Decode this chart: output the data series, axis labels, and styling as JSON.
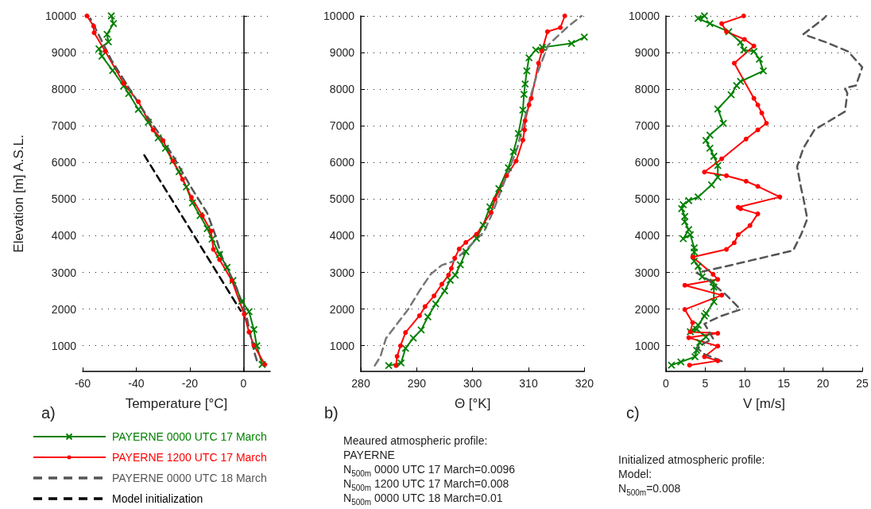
{
  "chart_data": [
    {
      "type": "line",
      "xlabel": "Temperature [°C]",
      "ylabel": "Elevation [m] A.S.L.",
      "xlim": [
        -60,
        10
      ],
      "xticks": [
        -60,
        -40,
        -20,
        0
      ],
      "ylim": [
        300,
        10000
      ],
      "yticks": [
        1000,
        2000,
        3000,
        4000,
        5000,
        6000,
        7000,
        8000,
        9000,
        10000
      ],
      "grid": "y",
      "legend": "bottom",
      "annotations": [
        "a)"
      ],
      "series": [
        {
          "name": "PAYERNE 0000 UTC 17 March",
          "color": "#008000",
          "marker": "cross",
          "x": [
            7,
            5,
            3.9,
            2.1,
            -0.6,
            -3.9,
            -6.1,
            -8.9,
            -11.7,
            -13.5,
            -16.2,
            -19.0,
            -21.3,
            -24.0,
            -26.3,
            -29.1,
            -31.8,
            -35.5,
            -39.2,
            -42.8,
            -44.7,
            -48.8,
            -52.8,
            -53.9,
            -50.4,
            -50.9,
            -48.5,
            -49.3
          ],
          "values": [
            490,
            1000,
            1440,
            1930,
            2220,
            2780,
            3140,
            3490,
            3910,
            4200,
            4550,
            4900,
            5330,
            5750,
            6040,
            6390,
            6670,
            7100,
            7450,
            7880,
            8090,
            8510,
            8900,
            9100,
            9290,
            9500,
            9790,
            10000
          ]
        },
        {
          "name": "PAYERNE 1200 UTC 17 March",
          "color": "#ff0000",
          "marker": "circle",
          "x": [
            8,
            3.9,
            2.1,
            0.3,
            -4.3,
            -8.9,
            -11.2,
            -12.1,
            -15.3,
            -19.4,
            -22.7,
            -26.3,
            -30.0,
            -33.7,
            -39.2,
            -44.7,
            -51.6,
            -55.7,
            -55.9,
            -58.4
          ],
          "values": [
            490,
            1010,
            1370,
            1860,
            2780,
            3350,
            3630,
            4130,
            4550,
            5050,
            5540,
            6040,
            6600,
            6890,
            7660,
            8160,
            9040,
            9540,
            9720,
            10000
          ]
        },
        {
          "name": "PAYERNE 0000 UTC 18 March",
          "color": "#555555",
          "marker": "none",
          "line_style": "dashed",
          "x": [
            5,
            3.9,
            1.2,
            -2.5,
            -8.0,
            -10.7,
            -13.5,
            -19.0,
            -26.3,
            -31.8,
            -38.3,
            -43.8,
            -49.3,
            -57.1
          ],
          "values": [
            600,
            870,
            1790,
            2570,
            3420,
            4060,
            4620,
            5260,
            6180,
            6820,
            7520,
            8160,
            8800,
            9930
          ]
        },
        {
          "name": "Model initialization",
          "color": "#000000",
          "marker": "none",
          "line_style": "dashed",
          "x": [
            -37,
            -1
          ],
          "values": [
            6200,
            1950
          ]
        }
      ]
    },
    {
      "type": "line",
      "xlabel": "Θ [°K]",
      "xlim": [
        280,
        320
      ],
      "xticks": [
        280,
        290,
        300,
        310,
        320
      ],
      "ylim": [
        300,
        10000
      ],
      "yticks": [
        1000,
        2000,
        3000,
        4000,
        5000,
        6000,
        7000,
        8000,
        9000,
        10000
      ],
      "grid": "y",
      "annotations": [
        "b)",
        "Meaured atmospheric profile:",
        "PAYERNE",
        "N$_{500m}$ 0000 UTC 17 March=0.0096",
        "N$_{500m}$ 1200 UTC 17 March=0.008",
        "N$_{500m}$ 0000 UTC 18 March=0.01"
      ],
      "series": [
        {
          "color": "#008000",
          "marker": "cross",
          "x": [
            285.0,
            287.2,
            288.0,
            289.4,
            290.8,
            292.0,
            293.4,
            295.0,
            296.0,
            296.9,
            297.8,
            298.8,
            300.7,
            301.9,
            303.1,
            304.7,
            306.4,
            307.3,
            308.2,
            309.0,
            309.2,
            309.4,
            309.7,
            310.1,
            311.3,
            312.5,
            317.7,
            320
          ],
          "values": [
            460,
            530,
            930,
            1210,
            1430,
            1790,
            2140,
            2500,
            2790,
            2930,
            3210,
            3570,
            3930,
            4290,
            4790,
            5290,
            5860,
            6290,
            6790,
            7430,
            7860,
            8140,
            8500,
            8860,
            9070,
            9140,
            9250,
            9420
          ]
        },
        {
          "color": "#ff0000",
          "marker": "circle",
          "x": [
            286.3,
            286.5,
            287.1,
            288.0,
            290.5,
            291.5,
            293.1,
            294.5,
            295.7,
            296.2,
            296.8,
            297.6,
            298.8,
            300.7,
            303.3,
            304.0,
            306.1,
            307.8,
            309.0,
            309.3,
            309.4,
            310.1,
            310.5,
            311.8,
            312.4,
            313.4,
            315.7,
            316.5
          ],
          "values": [
            460,
            710,
            1000,
            1360,
            1820,
            2070,
            2360,
            2680,
            2930,
            3110,
            3390,
            3640,
            3820,
            4040,
            4640,
            5000,
            5640,
            6040,
            6610,
            6890,
            7140,
            7570,
            7750,
            8710,
            9040,
            9570,
            9680,
            10000
          ]
        },
        {
          "color": "#777777",
          "marker": "none",
          "line_style": "dashed",
          "x": [
            282.5,
            283.5,
            284.5,
            286.5,
            288.5,
            290.5,
            292.5,
            294.5,
            296.5,
            298.0,
            300.0,
            302.0,
            303.5,
            305.0,
            306.5,
            308.0,
            309.0,
            310.0,
            311.5,
            313.5,
            317.0,
            319.5
          ],
          "values": [
            460,
            700,
            1200,
            1600,
            2000,
            2500,
            2950,
            3200,
            3300,
            3500,
            3800,
            4100,
            4600,
            5200,
            5800,
            6400,
            7000,
            7600,
            8400,
            9200,
            9700,
            10000
          ]
        }
      ]
    },
    {
      "type": "line",
      "xlabel": "V [m/s]",
      "xlim": [
        0,
        25
      ],
      "xticks": [
        0,
        5,
        10,
        15,
        20,
        25
      ],
      "ylim": [
        300,
        10000
      ],
      "yticks": [
        1000,
        2000,
        3000,
        4000,
        5000,
        6000,
        7000,
        8000,
        9000,
        10000
      ],
      "grid": "y",
      "annotations": [
        "c)",
        "Initialized atmospheric profile:",
        "Model:",
        "N$_{500m}$=0.008"
      ],
      "series": [
        {
          "color": "#008000",
          "marker": "cross",
          "x": [
            0.7,
            1.9,
            3.7,
            3.9,
            4.3,
            5.1,
            3.9,
            3.1,
            4.1,
            4.9,
            5.1,
            6.1,
            6.1,
            6.0,
            4.6,
            4.1,
            3.6,
            3.6,
            3.6,
            3.1,
            2.2,
            2.9,
            2.4,
            2.4,
            2.0,
            2.2,
            2.9,
            4.1,
            5.8,
            6.6,
            6.6,
            6.1,
            5.6,
            5.1,
            5.6,
            7.3,
            6.6,
            8.3,
            9.0,
            9.5,
            12.4,
            11.9,
            11.2,
            9.9,
            9.5,
            8.0,
            5.6,
            4.1,
            4.9
          ],
          "values": [
            470,
            560,
            700,
            880,
            1090,
            1240,
            1450,
            1380,
            1560,
            1810,
            1880,
            2200,
            2600,
            2740,
            2880,
            3170,
            3310,
            3560,
            3670,
            4030,
            3920,
            4170,
            4380,
            4530,
            4740,
            4850,
            4960,
            5060,
            5390,
            5600,
            5920,
            6170,
            6390,
            6600,
            6750,
            7070,
            7460,
            7850,
            8100,
            8210,
            8500,
            8820,
            9030,
            9070,
            9280,
            9570,
            9790,
            9930,
            10000
          ]
        },
        {
          "color": "#ff0000",
          "marker": "circle",
          "x": [
            3.0,
            6.6,
            4.9,
            6.6,
            2.9,
            6.6,
            3.1,
            3.4,
            2.4,
            7.1,
            2.4,
            6.6,
            6.0,
            3.4,
            7.7,
            8.7,
            9.2,
            10.7,
            11.7,
            9.5,
            9.2,
            14.5,
            11.7,
            10.2,
            7.7,
            4.9,
            7.1,
            10.2,
            11.7,
            12.8,
            12.2,
            11.7,
            11.2,
            8.7,
            11.2,
            10.0,
            7.7,
            7.1,
            9.9
          ],
          "values": [
            470,
            590,
            700,
            990,
            1220,
            1340,
            1380,
            1630,
            1990,
            2380,
            2650,
            2810,
            2950,
            3420,
            3630,
            3810,
            4030,
            4280,
            4600,
            4740,
            4780,
            5060,
            5350,
            5490,
            5640,
            5740,
            6100,
            6640,
            6890,
            7070,
            7350,
            7570,
            7750,
            8710,
            9180,
            9360,
            9570,
            9790,
            10000
          ]
        },
        {
          "color": "#555555",
          "marker": "none",
          "line_style": "dashed",
          "x": [
            7.1,
            4.9,
            3.9,
            6.0,
            4.9,
            7.0,
            9.5,
            7.7,
            5.3,
            3.9,
            7.7,
            16.2,
            17.2,
            18.0,
            17.5,
            17.2,
            16.7,
            17.5,
            18.9,
            22.8,
            23.1,
            22.8,
            24.2,
            25.0,
            23.2,
            20.4,
            17.5,
            20.1,
            20.4
          ],
          "values": [
            580,
            770,
            950,
            1200,
            1600,
            1810,
            1990,
            2380,
            2810,
            2990,
            3170,
            3600,
            4030,
            4460,
            5030,
            5310,
            5890,
            6390,
            6890,
            7390,
            7890,
            8030,
            8100,
            8600,
            9030,
            9280,
            9500,
            9930,
            10000
          ]
        }
      ]
    }
  ]
}
